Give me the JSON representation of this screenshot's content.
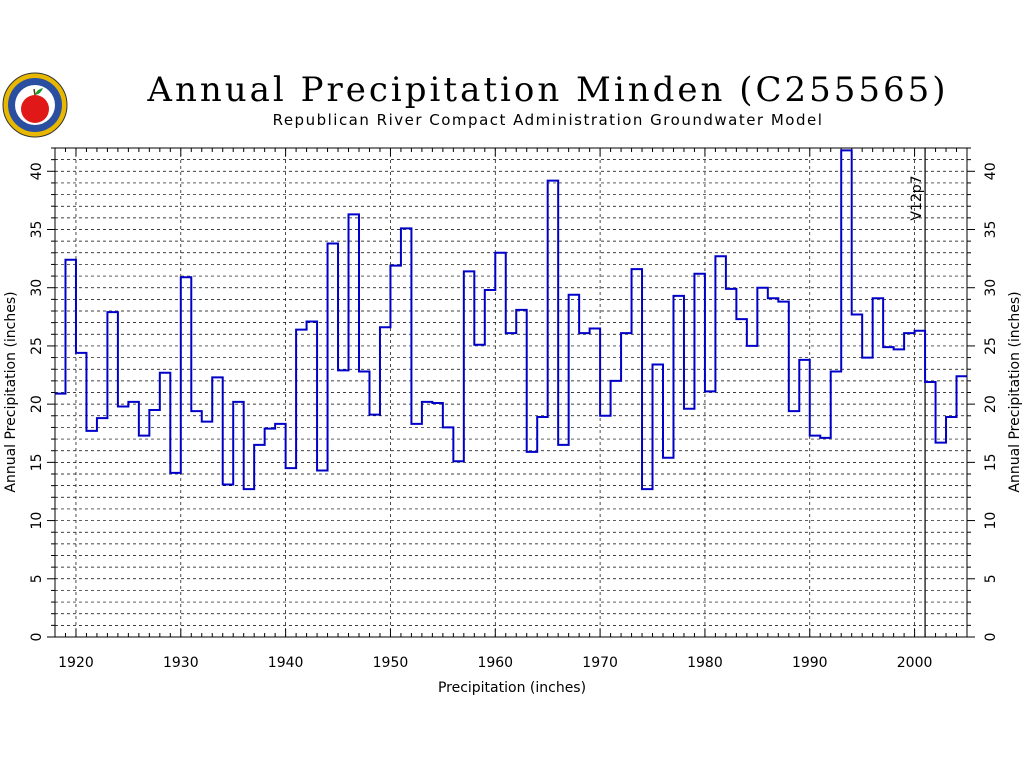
{
  "chart_data": {
    "type": "line",
    "title": "Annual Precipitation Minden (C255565)",
    "subtitle": "Republican River Compact Administration Groundwater Model",
    "xlabel": "Precipitation (inches)",
    "ylabel": "Annual Precipitation (inches)",
    "ylabel_right": "Annual Precipitation (inches)",
    "xlim": [
      1918,
      2005
    ],
    "ylim": [
      0,
      42
    ],
    "x_ticks": [
      1920,
      1930,
      1940,
      1950,
      1960,
      1970,
      1980,
      1990,
      2000
    ],
    "y_ticks": [
      0,
      5,
      10,
      15,
      20,
      25,
      30,
      35,
      40
    ],
    "grid": true,
    "step": true,
    "annotation": {
      "text": "V12p7",
      "x": 2001
    },
    "series": [
      {
        "color": "#0000c8",
        "x": [
          1918,
          1919,
          1920,
          1921,
          1922,
          1923,
          1924,
          1925,
          1926,
          1927,
          1928,
          1929,
          1930,
          1931,
          1932,
          1933,
          1934,
          1935,
          1936,
          1937,
          1938,
          1939,
          1940,
          1941,
          1942,
          1943,
          1944,
          1945,
          1946,
          1947,
          1948,
          1949,
          1950,
          1951,
          1952,
          1953,
          1954,
          1955,
          1956,
          1957,
          1958,
          1959,
          1960,
          1961,
          1962,
          1963,
          1964,
          1965,
          1966,
          1967,
          1968,
          1969,
          1970,
          1971,
          1972,
          1973,
          1974,
          1975,
          1976,
          1977,
          1978,
          1979,
          1980,
          1981,
          1982,
          1983,
          1984,
          1985,
          1986,
          1987,
          1988,
          1989,
          1990,
          1991,
          1992,
          1993,
          1994,
          1995,
          1996,
          1997,
          1998,
          1999,
          2000,
          2001,
          2002,
          2003,
          2004
        ],
        "values": [
          20.9,
          32.4,
          24.4,
          17.7,
          18.8,
          27.9,
          19.8,
          20.2,
          17.3,
          19.5,
          22.7,
          14.1,
          30.9,
          19.4,
          18.5,
          22.3,
          13.1,
          20.2,
          12.7,
          16.5,
          17.9,
          18.3,
          14.5,
          26.4,
          27.1,
          14.3,
          33.8,
          22.9,
          36.3,
          22.8,
          19.1,
          26.6,
          31.9,
          35.1,
          18.3,
          20.2,
          20.1,
          18.0,
          15.1,
          31.4,
          25.1,
          29.8,
          33.0,
          26.1,
          28.1,
          15.9,
          18.9,
          39.2,
          16.5,
          29.4,
          26.1,
          26.5,
          19.0,
          22.0,
          26.1,
          31.6,
          12.7,
          23.4,
          15.4,
          29.3,
          19.6,
          31.2,
          21.1,
          32.7,
          29.9,
          27.3,
          25.0,
          30.0,
          29.1,
          28.8,
          19.4,
          23.8,
          17.3,
          17.1,
          22.8,
          41.8,
          27.7,
          24.0,
          29.1,
          24.9,
          24.7,
          26.1,
          26.3,
          21.9,
          16.7,
          18.9,
          22.4
        ]
      }
    ]
  },
  "tick_labels": {
    "x": [
      "1920",
      "1930",
      "1940",
      "1950",
      "1960",
      "1970",
      "1980",
      "1990",
      "2000"
    ],
    "y": [
      "0",
      "5",
      "10",
      "15",
      "20",
      "25",
      "30",
      "35",
      "40"
    ]
  }
}
